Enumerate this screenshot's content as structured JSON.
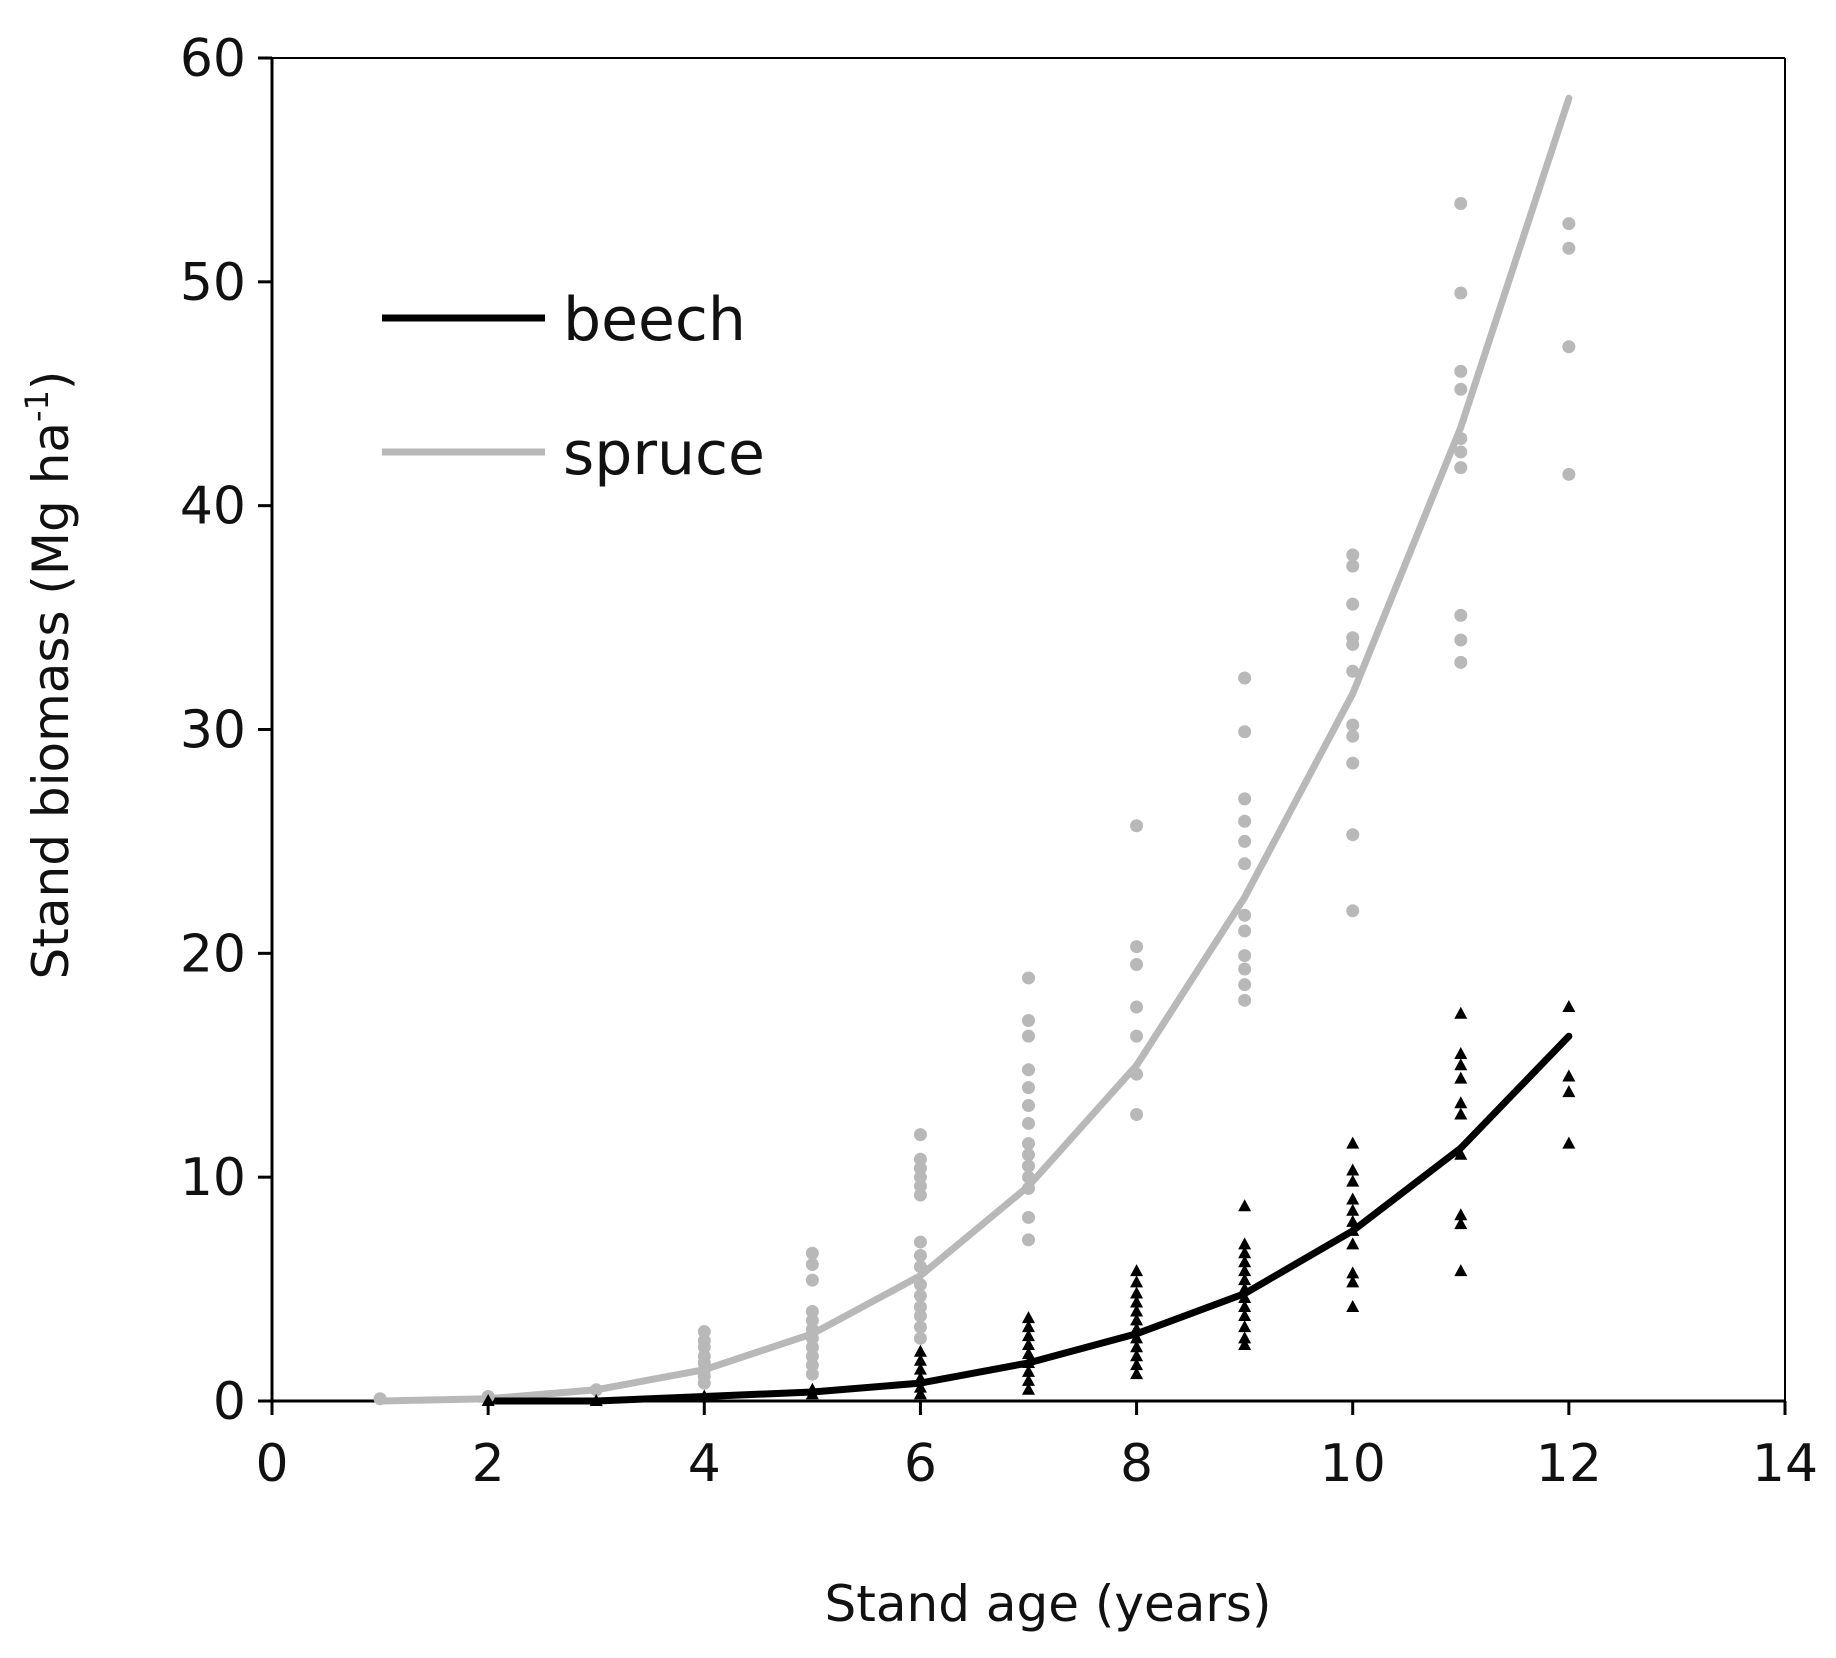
{
  "chart_data": {
    "type": "scatter",
    "title": "",
    "xlabel": "Stand age (years)",
    "ylabel": {
      "main": "Stand biomass  (Mg ha",
      "superscript": "-1",
      "close": ")"
    },
    "xlim": [
      0,
      14
    ],
    "ylim": [
      0,
      60
    ],
    "xticks": [
      0,
      2,
      4,
      6,
      8,
      10,
      12,
      14
    ],
    "yticks": [
      0,
      10,
      20,
      30,
      40,
      50,
      60
    ],
    "xtick_labels": [
      "0",
      "2",
      "4",
      "6",
      "8",
      "10",
      "12",
      "14"
    ],
    "ytick_labels": [
      "0",
      "10",
      "20",
      "30",
      "40",
      "50",
      "60"
    ],
    "grid": false,
    "legend": {
      "placement": "top-left",
      "entries": [
        {
          "label": "beech",
          "color": "#000000"
        },
        {
          "label": "spruce",
          "color": "#b8b8b8"
        }
      ]
    },
    "series": [
      {
        "name": "spruce",
        "color": "#b8b8b8",
        "marker": "circle",
        "fit": [
          [
            1,
            0.0
          ],
          [
            2,
            0.1
          ],
          [
            3,
            0.5
          ],
          [
            4,
            1.4
          ],
          [
            5,
            3.0
          ],
          [
            6,
            5.6
          ],
          [
            7,
            9.6
          ],
          [
            8,
            15.0
          ],
          [
            9,
            22.5
          ],
          [
            10,
            31.6
          ],
          [
            11,
            43.5
          ],
          [
            12,
            58.2
          ]
        ],
        "points": [
          [
            1,
            0.1
          ],
          [
            2,
            0.2
          ],
          [
            3,
            0.5
          ],
          [
            4,
            3.1
          ],
          [
            4,
            2.7
          ],
          [
            4,
            2.4
          ],
          [
            4,
            2.0
          ],
          [
            4,
            1.7
          ],
          [
            4,
            1.4
          ],
          [
            4,
            1.1
          ],
          [
            4,
            0.8
          ],
          [
            5,
            6.6
          ],
          [
            5,
            6.1
          ],
          [
            5,
            5.4
          ],
          [
            5,
            4.0
          ],
          [
            5,
            3.6
          ],
          [
            5,
            3.2
          ],
          [
            5,
            2.8
          ],
          [
            5,
            2.4
          ],
          [
            5,
            2.0
          ],
          [
            5,
            1.6
          ],
          [
            5,
            1.2
          ],
          [
            6,
            11.9
          ],
          [
            6,
            10.8
          ],
          [
            6,
            10.4
          ],
          [
            6,
            10.0
          ],
          [
            6,
            9.6
          ],
          [
            6,
            9.2
          ],
          [
            6,
            7.1
          ],
          [
            6,
            6.5
          ],
          [
            6,
            6.0
          ],
          [
            6,
            5.2
          ],
          [
            6,
            4.7
          ],
          [
            6,
            4.2
          ],
          [
            6,
            3.8
          ],
          [
            6,
            3.3
          ],
          [
            6,
            2.8
          ],
          [
            7,
            18.9
          ],
          [
            7,
            17.0
          ],
          [
            7,
            16.3
          ],
          [
            7,
            14.8
          ],
          [
            7,
            14.0
          ],
          [
            7,
            13.2
          ],
          [
            7,
            12.4
          ],
          [
            7,
            11.5
          ],
          [
            7,
            11.0
          ],
          [
            7,
            10.5
          ],
          [
            7,
            10.0
          ],
          [
            7,
            9.5
          ],
          [
            7,
            8.2
          ],
          [
            7,
            7.2
          ],
          [
            8,
            25.7
          ],
          [
            8,
            20.3
          ],
          [
            8,
            19.5
          ],
          [
            8,
            17.6
          ],
          [
            8,
            16.3
          ],
          [
            8,
            14.6
          ],
          [
            8,
            12.8
          ],
          [
            9,
            32.3
          ],
          [
            9,
            29.9
          ],
          [
            9,
            26.9
          ],
          [
            9,
            25.9
          ],
          [
            9,
            25.0
          ],
          [
            9,
            24.0
          ],
          [
            9,
            21.7
          ],
          [
            9,
            21.0
          ],
          [
            9,
            19.9
          ],
          [
            9,
            19.3
          ],
          [
            9,
            18.6
          ],
          [
            9,
            17.9
          ],
          [
            10,
            37.8
          ],
          [
            10,
            37.3
          ],
          [
            10,
            35.6
          ],
          [
            10,
            34.1
          ],
          [
            10,
            33.8
          ],
          [
            10,
            32.6
          ],
          [
            10,
            30.2
          ],
          [
            10,
            29.7
          ],
          [
            10,
            28.5
          ],
          [
            10,
            25.3
          ],
          [
            10,
            21.9
          ],
          [
            11,
            53.5
          ],
          [
            11,
            49.5
          ],
          [
            11,
            46.0
          ],
          [
            11,
            45.2
          ],
          [
            11,
            43.0
          ],
          [
            11,
            42.4
          ],
          [
            11,
            41.7
          ],
          [
            11,
            35.1
          ],
          [
            11,
            34.0
          ],
          [
            11,
            33.0
          ],
          [
            12,
            52.6
          ],
          [
            12,
            51.5
          ],
          [
            12,
            47.1
          ],
          [
            12,
            41.4
          ]
        ]
      },
      {
        "name": "beech",
        "color": "#000000",
        "marker": "triangle",
        "fit": [
          [
            2,
            0.0
          ],
          [
            3,
            0.0
          ],
          [
            4,
            0.2
          ],
          [
            5,
            0.4
          ],
          [
            6,
            0.8
          ],
          [
            7,
            1.7
          ],
          [
            8,
            3.0
          ],
          [
            9,
            4.8
          ],
          [
            10,
            7.6
          ],
          [
            11,
            11.3
          ],
          [
            12,
            16.3
          ]
        ],
        "points": [
          [
            2,
            0.0
          ],
          [
            3,
            0.0
          ],
          [
            4,
            0.2
          ],
          [
            5,
            0.3
          ],
          [
            5,
            0.5
          ],
          [
            6,
            2.2
          ],
          [
            6,
            1.8
          ],
          [
            6,
            1.4
          ],
          [
            6,
            1.0
          ],
          [
            6,
            0.6
          ],
          [
            6,
            0.3
          ],
          [
            7,
            3.7
          ],
          [
            7,
            3.3
          ],
          [
            7,
            2.9
          ],
          [
            7,
            2.5
          ],
          [
            7,
            2.1
          ],
          [
            7,
            1.7
          ],
          [
            7,
            1.3
          ],
          [
            7,
            0.9
          ],
          [
            7,
            0.5
          ],
          [
            8,
            5.8
          ],
          [
            8,
            5.3
          ],
          [
            8,
            4.8
          ],
          [
            8,
            4.4
          ],
          [
            8,
            4.0
          ],
          [
            8,
            3.6
          ],
          [
            8,
            3.2
          ],
          [
            8,
            2.8
          ],
          [
            8,
            2.4
          ],
          [
            8,
            2.0
          ],
          [
            8,
            1.6
          ],
          [
            8,
            1.2
          ],
          [
            9,
            8.7
          ],
          [
            9,
            7.0
          ],
          [
            9,
            6.6
          ],
          [
            9,
            6.2
          ],
          [
            9,
            5.8
          ],
          [
            9,
            5.4
          ],
          [
            9,
            5.0
          ],
          [
            9,
            4.6
          ],
          [
            9,
            4.2
          ],
          [
            9,
            3.8
          ],
          [
            9,
            3.3
          ],
          [
            9,
            2.8
          ],
          [
            9,
            2.5
          ],
          [
            10,
            11.5
          ],
          [
            10,
            10.3
          ],
          [
            10,
            9.8
          ],
          [
            10,
            9.0
          ],
          [
            10,
            8.5
          ],
          [
            10,
            8.0
          ],
          [
            10,
            7.6
          ],
          [
            10,
            7.0
          ],
          [
            10,
            5.7
          ],
          [
            10,
            5.3
          ],
          [
            10,
            4.2
          ],
          [
            11,
            17.3
          ],
          [
            11,
            15.5
          ],
          [
            11,
            15.0
          ],
          [
            11,
            14.4
          ],
          [
            11,
            13.3
          ],
          [
            11,
            12.8
          ],
          [
            11,
            11.0
          ],
          [
            11,
            8.3
          ],
          [
            11,
            7.9
          ],
          [
            11,
            5.8
          ],
          [
            12,
            17.6
          ],
          [
            12,
            14.5
          ],
          [
            12,
            13.8
          ],
          [
            12,
            11.5
          ]
        ]
      }
    ]
  }
}
